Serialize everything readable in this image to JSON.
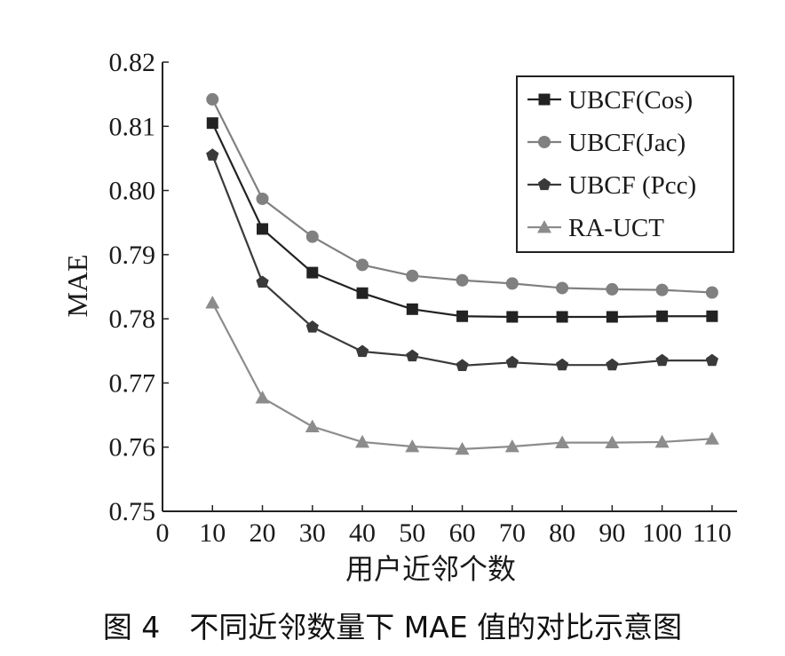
{
  "chart_data": {
    "type": "line",
    "title": "",
    "xlabel": "用户近邻个数",
    "ylabel": "MAE",
    "caption": "图 4　不同近邻数量下 MAE 值的对比示意图",
    "x": [
      10,
      20,
      30,
      40,
      50,
      60,
      70,
      80,
      90,
      100,
      110
    ],
    "xlim": [
      0,
      115
    ],
    "ylim": [
      0.75,
      0.82
    ],
    "x_ticks": [
      "0",
      "10",
      "20",
      "30",
      "40",
      "50",
      "60",
      "70",
      "80",
      "90",
      "100",
      "110"
    ],
    "y_ticks": [
      "0.75",
      "0.76",
      "0.77",
      "0.78",
      "0.79",
      "0.80",
      "0.81",
      "0.82"
    ],
    "grid": false,
    "legend_position": "top-right",
    "series": [
      {
        "name": "UBCF(Cos)",
        "marker": "square",
        "color": "#222222",
        "values": [
          0.8105,
          0.794,
          0.7872,
          0.784,
          0.7815,
          0.7804,
          0.7803,
          0.7803,
          0.7803,
          0.7804,
          0.7804
        ]
      },
      {
        "name": "UBCF(Jac)",
        "marker": "circle",
        "color": "#808080",
        "values": [
          0.8142,
          0.7987,
          0.7928,
          0.7884,
          0.7867,
          0.786,
          0.7855,
          0.7848,
          0.7846,
          0.7845,
          0.7841
        ]
      },
      {
        "name": "UBCF (Pcc)",
        "marker": "pentagon",
        "color": "#3a3a3a",
        "values": [
          0.8055,
          0.7857,
          0.7787,
          0.7749,
          0.7742,
          0.7727,
          0.7732,
          0.7728,
          0.7728,
          0.7735,
          0.7735
        ]
      },
      {
        "name": "RA-UCT",
        "marker": "triangle",
        "color": "#8c8c8c",
        "values": [
          0.7825,
          0.7677,
          0.7632,
          0.7608,
          0.7601,
          0.7597,
          0.7601,
          0.7607,
          0.7607,
          0.7608,
          0.7613
        ]
      }
    ]
  }
}
